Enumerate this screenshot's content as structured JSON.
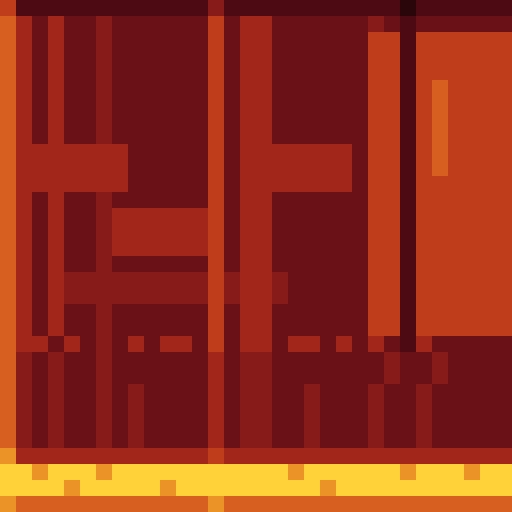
{
  "chart_data": {
    "type": "heatmap",
    "tick_labels": false,
    "cells": [
      [
        6,
        2,
        2,
        2,
        2,
        2,
        2,
        2,
        2,
        2,
        2,
        2,
        2,
        4,
        2,
        2,
        2,
        2,
        2,
        2,
        2,
        2,
        2,
        2,
        2,
        1,
        2,
        2,
        2,
        2,
        2,
        2
      ],
      [
        7,
        5,
        3,
        5,
        3,
        3,
        4,
        3,
        3,
        3,
        3,
        3,
        3,
        6,
        3,
        5,
        5,
        3,
        3,
        3,
        3,
        3,
        3,
        4,
        3,
        2,
        3,
        3,
        3,
        3,
        3,
        3
      ],
      [
        7,
        5,
        3,
        5,
        3,
        3,
        4,
        3,
        3,
        3,
        3,
        3,
        3,
        6,
        3,
        5,
        5,
        3,
        3,
        3,
        3,
        3,
        3,
        6,
        6,
        2,
        6,
        6,
        6,
        6,
        6,
        6
      ],
      [
        7,
        5,
        3,
        5,
        3,
        3,
        4,
        3,
        3,
        3,
        3,
        3,
        3,
        6,
        3,
        5,
        5,
        3,
        3,
        3,
        3,
        3,
        3,
        6,
        6,
        2,
        6,
        6,
        6,
        6,
        6,
        6
      ],
      [
        7,
        5,
        3,
        5,
        3,
        3,
        4,
        3,
        3,
        3,
        3,
        3,
        3,
        6,
        3,
        5,
        5,
        3,
        3,
        3,
        3,
        3,
        3,
        6,
        6,
        2,
        6,
        6,
        6,
        6,
        6,
        6
      ],
      [
        7,
        5,
        3,
        5,
        3,
        3,
        4,
        3,
        3,
        3,
        3,
        3,
        3,
        6,
        3,
        5,
        5,
        3,
        3,
        3,
        3,
        3,
        3,
        6,
        6,
        2,
        6,
        7,
        6,
        6,
        6,
        6
      ],
      [
        7,
        5,
        3,
        5,
        3,
        3,
        4,
        3,
        3,
        3,
        3,
        3,
        3,
        6,
        3,
        5,
        5,
        3,
        3,
        3,
        3,
        3,
        3,
        6,
        6,
        2,
        6,
        7,
        6,
        6,
        6,
        6
      ],
      [
        7,
        5,
        3,
        5,
        3,
        3,
        4,
        3,
        3,
        3,
        3,
        3,
        3,
        6,
        3,
        5,
        5,
        3,
        3,
        3,
        3,
        3,
        3,
        6,
        6,
        2,
        6,
        7,
        6,
        6,
        6,
        6
      ],
      [
        7,
        5,
        3,
        5,
        3,
        3,
        4,
        3,
        3,
        3,
        3,
        3,
        3,
        6,
        3,
        5,
        5,
        3,
        3,
        3,
        3,
        3,
        3,
        6,
        6,
        2,
        6,
        7,
        6,
        6,
        6,
        6
      ],
      [
        7,
        5,
        5,
        5,
        5,
        5,
        5,
        5,
        3,
        3,
        3,
        3,
        3,
        6,
        3,
        5,
        5,
        5,
        5,
        5,
        5,
        5,
        3,
        6,
        6,
        2,
        6,
        7,
        6,
        6,
        6,
        6
      ],
      [
        7,
        5,
        5,
        5,
        5,
        5,
        5,
        5,
        3,
        3,
        3,
        3,
        3,
        6,
        3,
        5,
        5,
        5,
        5,
        5,
        5,
        5,
        3,
        6,
        6,
        2,
        6,
        7,
        6,
        6,
        6,
        6
      ],
      [
        7,
        5,
        5,
        5,
        5,
        5,
        5,
        5,
        3,
        3,
        3,
        3,
        3,
        6,
        3,
        5,
        5,
        5,
        5,
        5,
        5,
        5,
        3,
        6,
        6,
        2,
        6,
        6,
        6,
        6,
        6,
        6
      ],
      [
        7,
        5,
        3,
        5,
        3,
        3,
        4,
        3,
        3,
        3,
        3,
        3,
        3,
        6,
        3,
        5,
        5,
        3,
        3,
        3,
        3,
        3,
        3,
        6,
        6,
        2,
        6,
        6,
        6,
        6,
        6,
        6
      ],
      [
        7,
        5,
        3,
        5,
        3,
        3,
        4,
        5,
        5,
        5,
        5,
        5,
        5,
        6,
        3,
        5,
        5,
        3,
        3,
        3,
        3,
        3,
        3,
        6,
        6,
        2,
        6,
        6,
        6,
        6,
        6,
        6
      ],
      [
        7,
        5,
        3,
        5,
        3,
        3,
        4,
        5,
        5,
        5,
        5,
        5,
        5,
        6,
        3,
        5,
        5,
        3,
        3,
        3,
        3,
        3,
        3,
        6,
        6,
        2,
        6,
        6,
        6,
        6,
        6,
        6
      ],
      [
        7,
        5,
        3,
        5,
        3,
        3,
        4,
        5,
        5,
        5,
        5,
        5,
        5,
        6,
        3,
        5,
        5,
        3,
        3,
        3,
        3,
        3,
        3,
        6,
        6,
        2,
        6,
        6,
        6,
        6,
        6,
        6
      ],
      [
        7,
        5,
        3,
        5,
        3,
        3,
        4,
        3,
        3,
        3,
        3,
        3,
        3,
        6,
        3,
        5,
        5,
        3,
        3,
        3,
        3,
        3,
        3,
        6,
        6,
        2,
        6,
        6,
        6,
        6,
        6,
        6
      ],
      [
        7,
        5,
        3,
        5,
        4,
        4,
        4,
        4,
        4,
        4,
        4,
        4,
        4,
        6,
        4,
        5,
        5,
        4,
        3,
        3,
        3,
        3,
        3,
        6,
        6,
        2,
        6,
        6,
        6,
        6,
        6,
        6
      ],
      [
        7,
        5,
        3,
        5,
        4,
        4,
        4,
        4,
        4,
        4,
        4,
        4,
        4,
        6,
        4,
        5,
        5,
        4,
        3,
        3,
        3,
        3,
        3,
        6,
        6,
        2,
        6,
        6,
        6,
        6,
        6,
        6
      ],
      [
        7,
        5,
        3,
        5,
        3,
        3,
        4,
        3,
        3,
        3,
        3,
        3,
        3,
        6,
        3,
        5,
        5,
        3,
        3,
        3,
        3,
        3,
        3,
        6,
        6,
        2,
        6,
        6,
        6,
        6,
        6,
        6
      ],
      [
        7,
        5,
        3,
        5,
        3,
        3,
        4,
        3,
        3,
        3,
        3,
        3,
        3,
        6,
        3,
        5,
        5,
        3,
        3,
        3,
        3,
        3,
        3,
        6,
        6,
        2,
        6,
        6,
        6,
        6,
        6,
        6
      ],
      [
        7,
        5,
        5,
        3,
        5,
        3,
        4,
        3,
        5,
        3,
        5,
        5,
        3,
        6,
        3,
        5,
        5,
        3,
        5,
        5,
        3,
        5,
        3,
        5,
        3,
        2,
        5,
        3,
        3,
        3,
        3,
        3
      ],
      [
        7,
        4,
        3,
        4,
        3,
        3,
        4,
        3,
        3,
        3,
        3,
        3,
        3,
        5,
        3,
        4,
        4,
        3,
        3,
        3,
        3,
        3,
        3,
        3,
        4,
        3,
        3,
        4,
        3,
        3,
        3,
        3
      ],
      [
        7,
        4,
        3,
        4,
        3,
        3,
        4,
        3,
        3,
        3,
        3,
        3,
        3,
        5,
        3,
        4,
        4,
        3,
        3,
        3,
        3,
        3,
        3,
        3,
        4,
        3,
        3,
        4,
        3,
        3,
        3,
        3
      ],
      [
        7,
        4,
        3,
        4,
        3,
        3,
        4,
        3,
        4,
        3,
        3,
        3,
        3,
        5,
        3,
        4,
        4,
        3,
        3,
        4,
        3,
        3,
        3,
        4,
        3,
        3,
        4,
        3,
        3,
        3,
        3,
        3
      ],
      [
        7,
        4,
        3,
        4,
        3,
        3,
        4,
        3,
        4,
        3,
        3,
        3,
        3,
        5,
        3,
        4,
        4,
        3,
        3,
        4,
        3,
        3,
        3,
        4,
        3,
        3,
        4,
        3,
        3,
        3,
        3,
        3
      ],
      [
        7,
        4,
        3,
        4,
        3,
        3,
        4,
        3,
        4,
        3,
        3,
        3,
        3,
        5,
        3,
        4,
        4,
        3,
        3,
        4,
        3,
        3,
        3,
        4,
        3,
        3,
        4,
        3,
        3,
        3,
        3,
        3
      ],
      [
        7,
        4,
        3,
        4,
        3,
        3,
        4,
        3,
        4,
        3,
        3,
        3,
        3,
        5,
        3,
        4,
        4,
        3,
        3,
        4,
        3,
        3,
        3,
        4,
        3,
        3,
        4,
        3,
        3,
        3,
        3,
        3
      ],
      [
        8,
        5,
        5,
        5,
        5,
        5,
        5,
        5,
        5,
        5,
        5,
        5,
        5,
        6,
        5,
        5,
        5,
        5,
        5,
        5,
        5,
        5,
        5,
        5,
        5,
        5,
        5,
        5,
        5,
        5,
        5,
        5
      ],
      [
        9,
        9,
        8,
        9,
        9,
        9,
        8,
        9,
        9,
        9,
        9,
        9,
        9,
        9,
        9,
        9,
        9,
        9,
        8,
        9,
        9,
        9,
        9,
        9,
        9,
        8,
        9,
        9,
        9,
        8,
        9,
        9
      ],
      [
        9,
        9,
        9,
        9,
        8,
        9,
        9,
        9,
        9,
        9,
        8,
        9,
        9,
        9,
        9,
        9,
        9,
        9,
        9,
        9,
        8,
        9,
        9,
        9,
        9,
        9,
        9,
        9,
        9,
        9,
        9,
        9
      ],
      [
        8,
        7,
        7,
        7,
        7,
        7,
        7,
        7,
        7,
        7,
        7,
        7,
        7,
        8,
        7,
        7,
        7,
        7,
        7,
        7,
        7,
        7,
        7,
        7,
        7,
        7,
        7,
        7,
        7,
        7,
        7,
        7
      ]
    ]
  }
}
